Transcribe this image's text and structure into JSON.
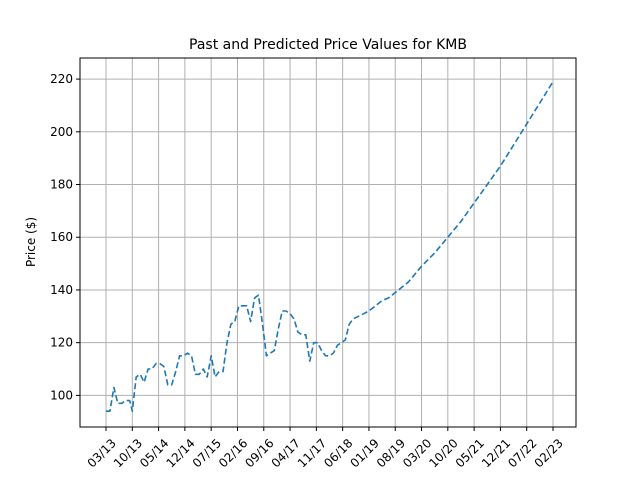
{
  "chart_data": {
    "type": "line",
    "title": "Past and Predicted Price Values for KMB",
    "xlabel": "",
    "ylabel": "Price ($)",
    "ylim": [
      88,
      228
    ],
    "grid": true,
    "colors": {
      "line": "#1f77b4",
      "grid": "#b0b0b0"
    },
    "line_style": "dashed",
    "x_ticks": [
      "03/13",
      "10/13",
      "05/14",
      "12/14",
      "07/15",
      "02/16",
      "09/16",
      "04/17",
      "11/17",
      "06/18",
      "01/19",
      "08/19",
      "03/20",
      "10/20",
      "05/21",
      "12/21",
      "07/22",
      "02/23"
    ],
    "y_ticks": [
      100,
      120,
      140,
      160,
      180,
      200,
      220
    ],
    "series": [
      {
        "x": [
          0,
          0.15,
          0.3,
          0.45,
          0.6,
          0.75,
          0.9,
          1.0,
          1.15,
          1.3,
          1.45,
          1.6,
          1.75,
          1.9,
          2.05,
          2.2,
          2.35,
          2.5,
          2.65,
          2.8,
          2.95,
          3.1,
          3.25,
          3.4,
          3.55,
          3.7,
          3.85,
          4.0,
          4.15,
          4.3,
          4.45,
          4.6,
          4.75,
          4.9,
          5.05,
          5.2,
          5.35,
          5.5,
          5.65,
          5.8,
          5.95,
          6.1,
          6.25,
          6.4,
          6.55,
          6.7,
          6.85,
          7.0,
          7.15,
          7.3,
          7.45,
          7.6,
          7.75,
          7.9,
          8.05,
          8.2,
          8.35,
          8.5,
          8.65,
          8.8,
          8.95,
          9.1,
          9.25,
          9.4,
          9.6,
          9.8,
          10.0,
          10.25,
          10.5,
          10.75,
          11.0,
          11.25,
          11.5,
          11.75,
          12.0,
          12.5,
          13.0,
          13.5,
          14.0,
          14.5,
          15.0,
          15.5,
          16.0,
          16.5,
          17.0
        ],
        "values": [
          94,
          94,
          103,
          97,
          97,
          98,
          98,
          94,
          107,
          108,
          105,
          110,
          110,
          112,
          112,
          111,
          104,
          104,
          109,
          115,
          115,
          116,
          115,
          108,
          108,
          110,
          107,
          115,
          107,
          109,
          109,
          120,
          127,
          128,
          134,
          134,
          134,
          128,
          137,
          138,
          127,
          115,
          116,
          117,
          125,
          132,
          132,
          131,
          129,
          124,
          123,
          123,
          113,
          120,
          120,
          117,
          115,
          115,
          116,
          119,
          120,
          121,
          127,
          129,
          130,
          131,
          132,
          134,
          136,
          137,
          139,
          141,
          143,
          146,
          149,
          154,
          160,
          166,
          173,
          180,
          187,
          195,
          203,
          211,
          219
        ]
      }
    ]
  }
}
